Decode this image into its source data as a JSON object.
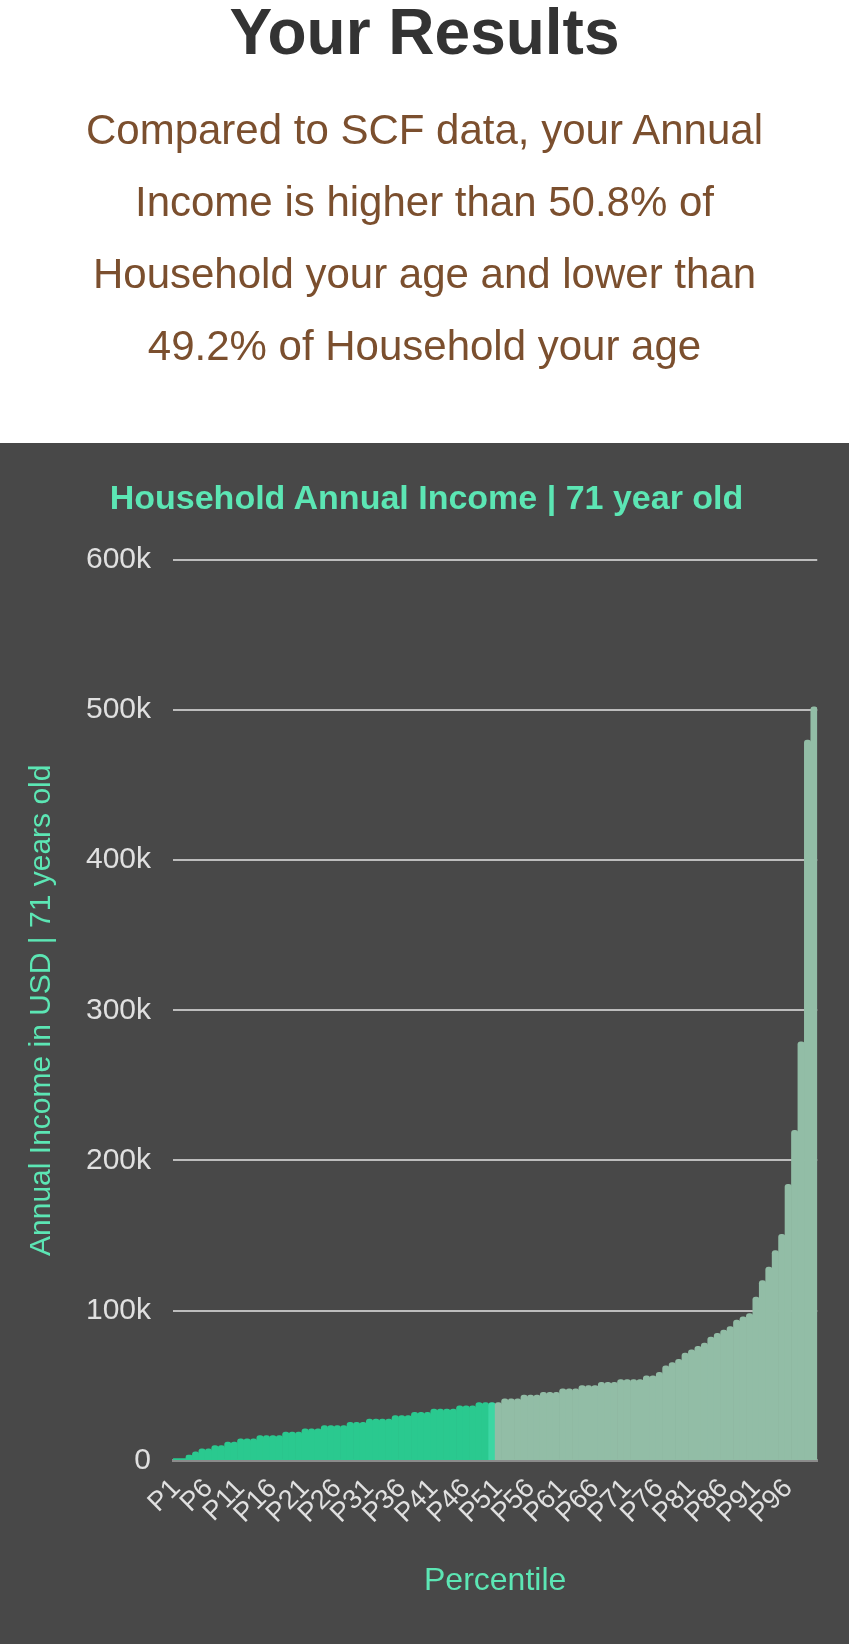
{
  "chart_data": {
    "type": "bar",
    "title": "Household Annual Income | 71 year old",
    "xlabel": "Percentile",
    "ylabel": "Annual Income in USD | 71 years old",
    "annotations": [
      "Your Results",
      "Compared to SCF data, your Annual Income is higher than 50.8% of Household your age and lower than 49.2% of Household your age"
    ],
    "categories": [
      "P1",
      null,
      null,
      null,
      null,
      "P6",
      null,
      null,
      null,
      null,
      "P11",
      null,
      null,
      null,
      null,
      "P16",
      null,
      null,
      null,
      null,
      "P21",
      null,
      null,
      null,
      null,
      "P26",
      null,
      null,
      null,
      null,
      "P31",
      null,
      null,
      null,
      null,
      "P36",
      null,
      null,
      null,
      null,
      "P41",
      null,
      null,
      null,
      null,
      "P46",
      null,
      null,
      null,
      null,
      "P51",
      null,
      null,
      null,
      null,
      "P56",
      null,
      null,
      null,
      null,
      "P61",
      null,
      null,
      null,
      null,
      "P66",
      null,
      null,
      null,
      null,
      "P71",
      null,
      null,
      null,
      null,
      "P76",
      null,
      null,
      null,
      null,
      "P81",
      null,
      null,
      null,
      null,
      "P86",
      null,
      null,
      null,
      null,
      "P91",
      null,
      null,
      null,
      null,
      "P96",
      null,
      null,
      null,
      null
    ],
    "values": [
      1500,
      1500,
      3700,
      5900,
      8000,
      8000,
      10000,
      10000,
      12400,
      12400,
      14600,
      14600,
      14600,
      16800,
      16800,
      16800,
      16800,
      19000,
      19000,
      19000,
      21200,
      21200,
      21200,
      23400,
      23400,
      23400,
      23400,
      25600,
      25600,
      25600,
      27800,
      27800,
      27800,
      27800,
      30000,
      30000,
      30000,
      32200,
      32200,
      32200,
      34400,
      34400,
      34400,
      34400,
      36600,
      36600,
      36600,
      38800,
      38800,
      38800,
      38800,
      41200,
      41200,
      41200,
      43700,
      43700,
      43700,
      45600,
      45600,
      45600,
      47800,
      47800,
      47800,
      50000,
      50000,
      50000,
      52200,
      52200,
      52200,
      54100,
      54100,
      54100,
      54100,
      56600,
      56600,
      58800,
      63200,
      65400,
      67600,
      71700,
      73900,
      76100,
      78300,
      82400,
      84900,
      87000,
      89300,
      93700,
      95900,
      98000,
      109000,
      120000,
      129000,
      140000,
      150700,
      184000,
      220000,
      279000,
      480000,
      502000
    ],
    "colors": [
      "#2ac98f",
      "#2ac98f",
      "#2ac98f",
      "#2ac98f",
      "#2ac98f",
      "#2ac98f",
      "#2ac98f",
      "#2ac98f",
      "#2ac98f",
      "#2ac98f",
      "#2ac98f",
      "#2ac98f",
      "#2ac98f",
      "#2ac98f",
      "#2ac98f",
      "#2ac98f",
      "#2ac98f",
      "#2ac98f",
      "#2ac98f",
      "#2ac98f",
      "#2ac98f",
      "#2ac98f",
      "#2ac98f",
      "#2ac98f",
      "#2ac98f",
      "#2ac98f",
      "#2ac98f",
      "#2ac98f",
      "#2ac98f",
      "#2ac98f",
      "#2ac98f",
      "#2ac98f",
      "#2ac98f",
      "#2ac98f",
      "#2ac98f",
      "#2ac98f",
      "#2ac98f",
      "#2ac98f",
      "#2ac98f",
      "#2ac98f",
      "#2ac98f",
      "#2ac98f",
      "#2ac98f",
      "#2ac98f",
      "#2ac98f",
      "#2ac98f",
      "#2ac98f",
      "#2ac98f",
      "#2ac98f",
      "#3dd6a3",
      "#92bda6",
      "#92bda6",
      "#92bda6",
      "#92bda6",
      "#92bda6",
      "#92bda6",
      "#92bda6",
      "#92bda6",
      "#92bda6",
      "#92bda6",
      "#92bda6",
      "#92bda6",
      "#92bda6",
      "#92bda6",
      "#92bda6",
      "#92bda6",
      "#92bda6",
      "#92bda6",
      "#92bda6",
      "#92bda6",
      "#92bda6",
      "#92bda6",
      "#92bda6",
      "#92bda6",
      "#92bda6",
      "#92bda6",
      "#92bda6",
      "#92bda6",
      "#92bda6",
      "#92bda6",
      "#92bda6",
      "#92bda6",
      "#92bda6",
      "#92bda6",
      "#92bda6",
      "#92bda6",
      "#92bda6",
      "#92bda6",
      "#92bda6",
      "#92bda6",
      "#92bda6",
      "#92bda6",
      "#92bda6",
      "#92bda6",
      "#92bda6",
      "#92bda6",
      "#92bda6",
      "#92bda6",
      "#92bda6",
      "#92bda6"
    ],
    "ylim": [
      0,
      600000
    ],
    "yticks": [
      0,
      {
        "value": 100000,
        "label": "100k"
      },
      {
        "value": 200000,
        "label": "200k"
      },
      {
        "value": 300000,
        "label": "300k"
      },
      {
        "value": 400000,
        "label": "400k"
      },
      {
        "value": 500000,
        "label": "500k"
      },
      {
        "value": 600000,
        "label": "600k"
      }
    ],
    "grid": "y",
    "legend": false
  }
}
